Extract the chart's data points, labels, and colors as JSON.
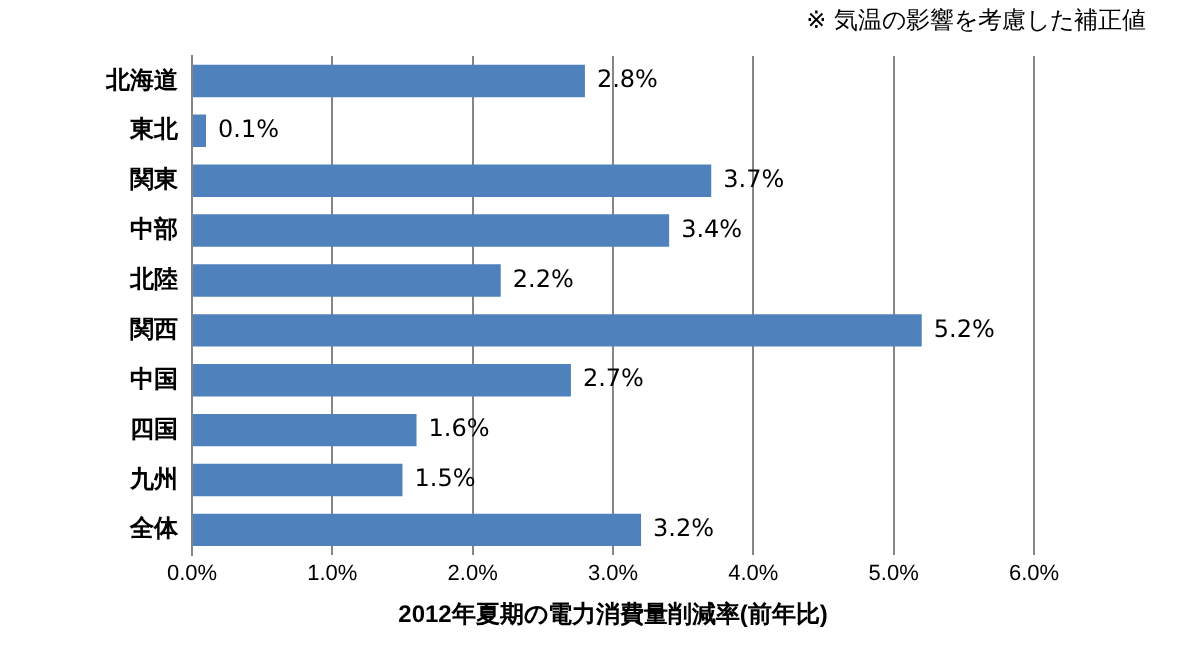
{
  "chart_data": {
    "type": "bar",
    "orientation": "horizontal",
    "xlabel": "2012年夏期の電力消費量削減率(前年比)",
    "annotations": [
      "※ 気温の影響を考慮した補正値"
    ],
    "categories": [
      "北海道",
      "東北",
      "関東",
      "中部",
      "北陸",
      "関西",
      "中国",
      "四国",
      "九州",
      "全体"
    ],
    "values": [
      2.8,
      0.1,
      3.7,
      3.4,
      2.2,
      5.2,
      2.7,
      1.6,
      1.5,
      3.2
    ],
    "value_labels": [
      "2.8%",
      "0.1%",
      "3.7%",
      "3.4%",
      "2.2%",
      "5.2%",
      "2.7%",
      "1.6%",
      "1.5%",
      "3.2%"
    ],
    "color": "#4f81bd",
    "xlim": [
      0,
      6
    ],
    "xticks": [
      {
        "value": 0,
        "label": "0.0%"
      },
      {
        "value": 1,
        "label": "1.0%"
      },
      {
        "value": 2,
        "label": "2.0%"
      },
      {
        "value": 3,
        "label": "3.0%"
      },
      {
        "value": 4,
        "label": "4.0%"
      },
      {
        "value": 5,
        "label": "5.0%"
      },
      {
        "value": 6,
        "label": "6.0%"
      }
    ],
    "grid": "x",
    "legend": false
  }
}
